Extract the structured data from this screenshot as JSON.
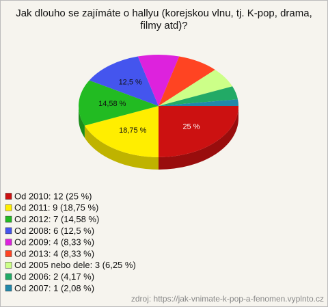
{
  "chart_data": {
    "type": "pie",
    "title": "Jak dlouho se zajímáte o hallyu (korejskou vlnu, tj. K-pop, drama, filmy atd)?",
    "categories": [
      "Od 2010",
      "Od 2011",
      "Od 2012",
      "Od 2008",
      "Od 2009",
      "Od 2013",
      "Od 2005 nebo dele",
      "Od 2006",
      "Od 2007"
    ],
    "values": [
      25,
      18.75,
      14.58,
      12.5,
      8.33,
      8.33,
      6.25,
      4.17,
      2.08
    ],
    "value_labels": [
      "25 %",
      "18,75 %",
      "14,58 %",
      "12,5 %",
      null,
      null,
      null,
      null,
      null
    ],
    "legend_labels": [
      "Od 2010: 12 (25 %)",
      "Od 2011: 9 (18,75 %)",
      "Od 2012: 7 (14,58 %)",
      "Od 2008: 6 (12,5 %)",
      "Od 2009: 4 (8,33 %)",
      "Od 2013: 4 (8,33 %)",
      "Od 2005 nebo dele: 3 (6,25 %)",
      "Od 2006: 2 (4,17 %)",
      "Od 2007: 1 (2,08 %)"
    ],
    "colors": [
      "#cc1111",
      "#ffee00",
      "#22bb22",
      "#4455ee",
      "#dd22dd",
      "#ff4422",
      "#ccff88",
      "#22aa66",
      "#2288aa"
    ],
    "source": "zdroj: https://jak-vnimate-k-pop-a-fenomen.vyplnto.cz"
  }
}
